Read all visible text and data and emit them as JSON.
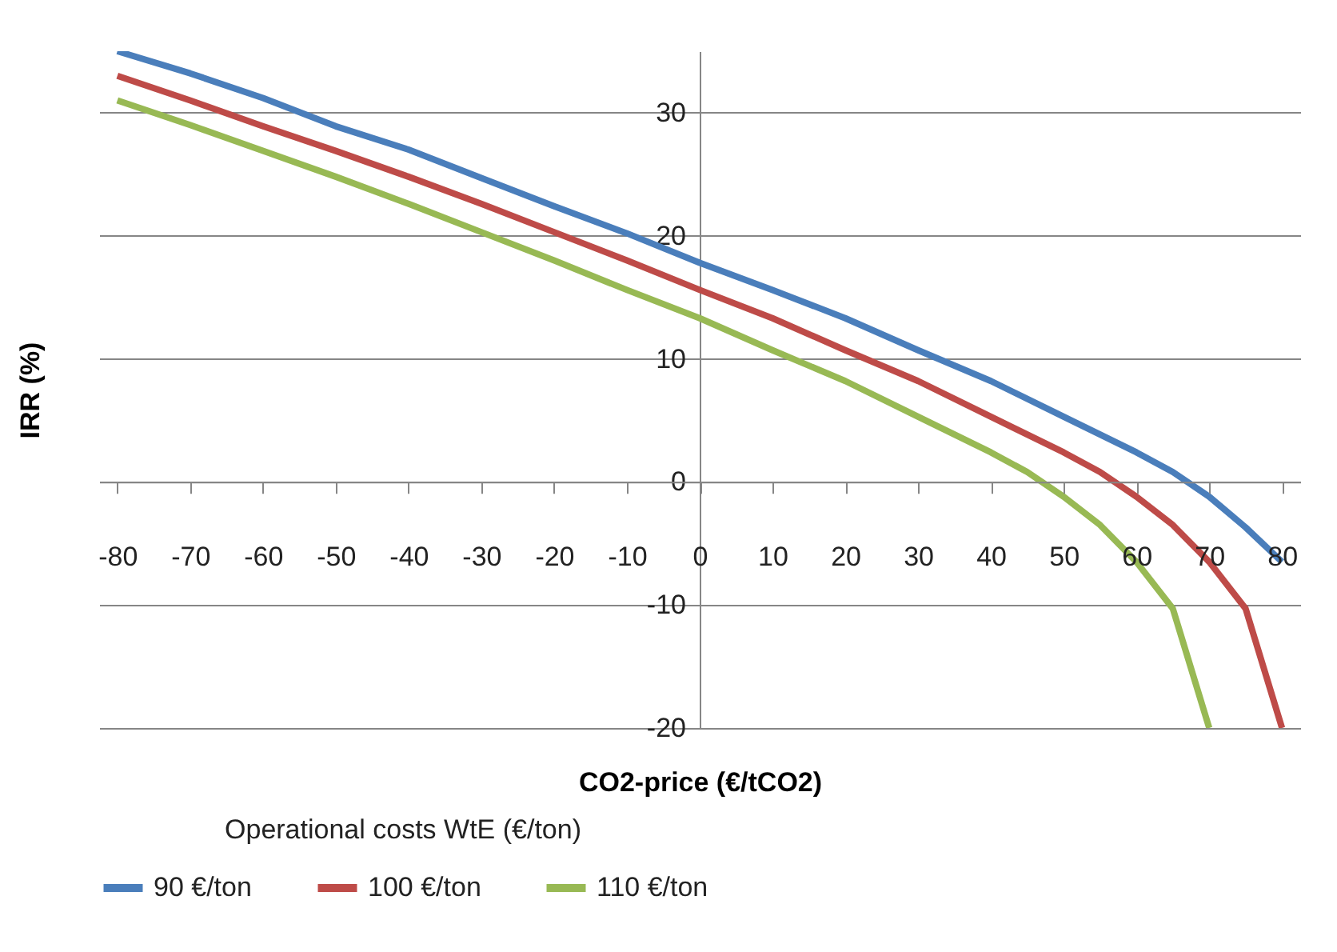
{
  "chart_data": {
    "type": "line",
    "xlabel": "CO2-price (€/tCO2)",
    "ylabel": "IRR (%)",
    "legend_title": "Operational  costs WtE (€/ton)",
    "xlim": [
      -82.5,
      82.5
    ],
    "xticks": [
      -80,
      -70,
      -60,
      -50,
      -40,
      -30,
      -20,
      -10,
      0,
      10,
      20,
      30,
      40,
      50,
      60,
      70,
      80
    ],
    "ylim": [
      -20,
      35
    ],
    "yticks": [
      -20,
      -10,
      0,
      10,
      20,
      30
    ],
    "grid": "y",
    "legend": "bottom",
    "marker": "none",
    "line_style": "solid",
    "series": [
      {
        "name": "90 €/ton",
        "color": "#4a7ebb",
        "x": [
          -80,
          -70,
          -60,
          -50,
          -40,
          -30,
          -20,
          -10,
          0,
          10,
          20,
          30,
          40,
          50,
          60,
          65,
          70,
          75,
          80
        ],
        "values": [
          35,
          33.2,
          31.2,
          28.9,
          27,
          24.7,
          22.4,
          20.2,
          17.8,
          15.6,
          13.3,
          10.7,
          8.2,
          5.3,
          2.4,
          0.8,
          -1.2,
          -3.7,
          -6.5
        ]
      },
      {
        "name": "100 €/ton",
        "color": "#be4b48",
        "x": [
          -80,
          -70,
          -60,
          -50,
          -40,
          -30,
          -20,
          -10,
          0,
          10,
          20,
          30,
          40,
          50,
          55,
          60,
          65,
          70,
          75,
          80
        ],
        "values": [
          33,
          31,
          28.9,
          26.9,
          24.8,
          22.6,
          20.3,
          18,
          15.6,
          13.3,
          10.7,
          8.2,
          5.3,
          2.4,
          0.8,
          -1.2,
          -3.5,
          -6.5,
          -10.3,
          -20
        ]
      },
      {
        "name": "110 €/ton",
        "color": "#98b954",
        "x": [
          -80,
          -70,
          -60,
          -50,
          -40,
          -30,
          -20,
          -10,
          0,
          10,
          20,
          30,
          40,
          45,
          50,
          55,
          60,
          65,
          70
        ],
        "values": [
          31,
          29,
          26.9,
          24.8,
          22.6,
          20.3,
          18,
          15.6,
          13.3,
          10.7,
          8.2,
          5.3,
          2.4,
          0.8,
          -1.2,
          -3.5,
          -6.5,
          -10.3,
          -20
        ]
      }
    ]
  }
}
